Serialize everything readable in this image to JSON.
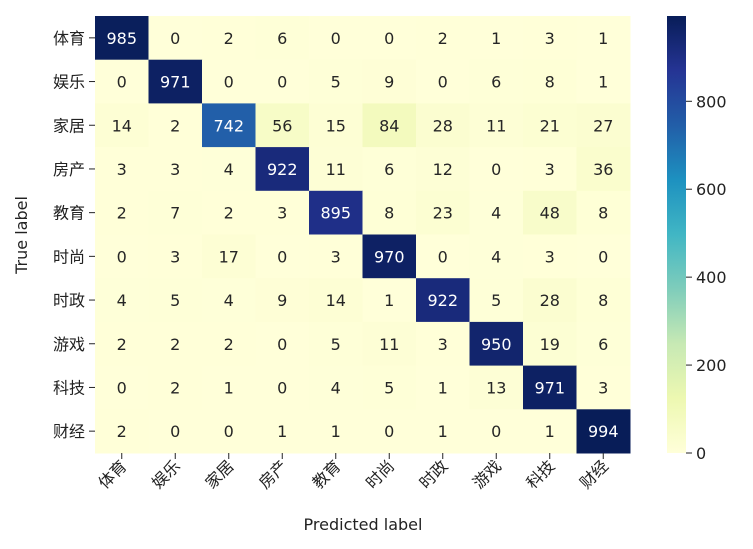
{
  "chart_data": {
    "type": "heatmap",
    "title": "",
    "xlabel": "Predicted label",
    "ylabel": "True label",
    "row_labels": [
      "体育",
      "娱乐",
      "家居",
      "房产",
      "教育",
      "时尚",
      "时政",
      "游戏",
      "科技",
      "财经"
    ],
    "col_labels": [
      "体育",
      "娱乐",
      "家居",
      "房产",
      "教育",
      "时尚",
      "时政",
      "游戏",
      "科技",
      "财经"
    ],
    "values": [
      [
        985,
        0,
        2,
        6,
        0,
        0,
        2,
        1,
        3,
        1
      ],
      [
        0,
        971,
        0,
        0,
        5,
        9,
        0,
        6,
        8,
        1
      ],
      [
        14,
        2,
        742,
        56,
        15,
        84,
        28,
        11,
        21,
        27
      ],
      [
        3,
        3,
        4,
        922,
        11,
        6,
        12,
        0,
        3,
        36
      ],
      [
        2,
        7,
        2,
        3,
        895,
        8,
        23,
        4,
        48,
        8
      ],
      [
        0,
        3,
        17,
        0,
        3,
        970,
        0,
        4,
        3,
        0
      ],
      [
        4,
        5,
        4,
        9,
        14,
        1,
        922,
        5,
        28,
        8
      ],
      [
        2,
        2,
        2,
        0,
        5,
        11,
        3,
        950,
        19,
        6
      ],
      [
        0,
        2,
        1,
        0,
        4,
        5,
        1,
        13,
        971,
        3
      ],
      [
        2,
        0,
        0,
        1,
        1,
        0,
        1,
        0,
        1,
        994
      ]
    ],
    "colormap": "YlGnBu",
    "colors": [
      "#ffffd9",
      "#edf8b1",
      "#c7e9b4",
      "#7fcdbb",
      "#41b6c4",
      "#1d91c0",
      "#225ea8",
      "#253494",
      "#081d58"
    ],
    "text_color_light": "#ffffff",
    "text_color_dark": "#262626",
    "colorbar": {
      "range": [
        0,
        994
      ],
      "ticks": [
        0,
        200,
        400,
        600,
        800
      ]
    }
  }
}
